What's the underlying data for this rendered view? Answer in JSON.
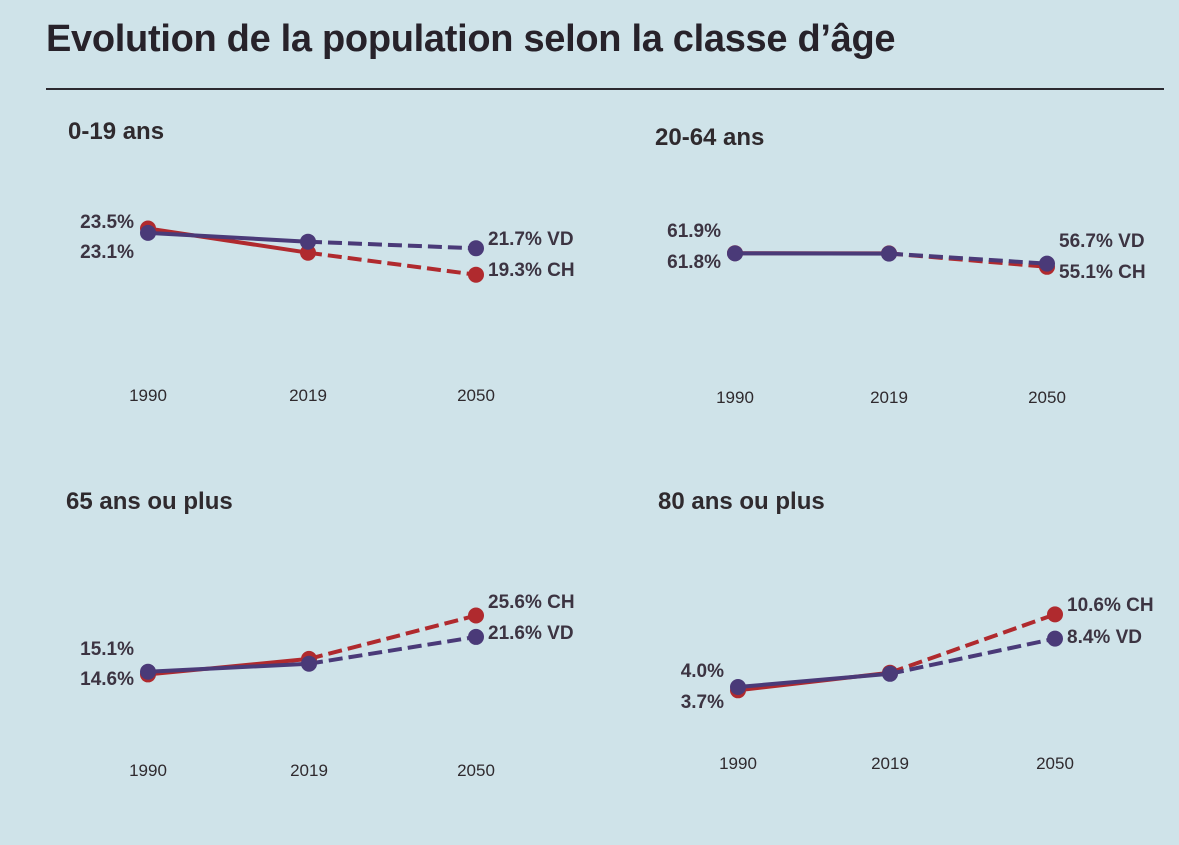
{
  "title": "Evolution de la population selon la classe d’âge",
  "colors": {
    "VD": "#4a3a78",
    "CH": "#b02a2e",
    "background": "#cfe3e9",
    "text": "#2f2a2e"
  },
  "chart_data": [
    {
      "type": "line",
      "title": "0-19 ans",
      "x": [
        "1990",
        "2019",
        "2050"
      ],
      "ylim": [
        19.0,
        24.0
      ],
      "series": [
        {
          "name": "VD",
          "values": [
            23.1,
            22.3,
            21.7
          ],
          "projected_from_index": 1
        },
        {
          "name": "CH",
          "values": [
            23.5,
            21.3,
            19.3
          ],
          "projected_from_index": 1
        }
      ],
      "start_labels": {
        "top": "23.5%",
        "bottom": "23.1%"
      },
      "end_labels": {
        "top": "21.7% VD",
        "bottom": "19.3% CH"
      }
    },
    {
      "type": "line",
      "title": "20-64 ans",
      "x": [
        "1990",
        "2019",
        "2050"
      ],
      "ylim": [
        54.5,
        62.5
      ],
      "series": [
        {
          "name": "VD",
          "values": [
            61.8,
            61.7,
            56.7
          ],
          "projected_from_index": 1
        },
        {
          "name": "CH",
          "values": [
            61.9,
            61.8,
            55.1
          ],
          "projected_from_index": 1
        }
      ],
      "start_labels": {
        "top": "61.9%",
        "bottom": "61.8%"
      },
      "end_labels": {
        "top": "56.7% VD",
        "bottom": "55.1% CH"
      }
    },
    {
      "type": "line",
      "title": "65 ans ou plus",
      "x": [
        "1990",
        "2019",
        "2050"
      ],
      "ylim": [
        13.0,
        27.0
      ],
      "series": [
        {
          "name": "VD",
          "values": [
            15.1,
            16.6,
            21.6
          ],
          "projected_from_index": 1
        },
        {
          "name": "CH",
          "values": [
            14.6,
            17.5,
            25.6
          ],
          "projected_from_index": 1
        }
      ],
      "start_labels": {
        "top": "15.1%",
        "bottom": "14.6%"
      },
      "end_labels": {
        "top": "25.6% CH",
        "bottom": "21.6% VD"
      }
    },
    {
      "type": "line",
      "title": "80 ans ou plus",
      "x": [
        "1990",
        "2019",
        "2050"
      ],
      "ylim": [
        3.0,
        11.0
      ],
      "series": [
        {
          "name": "VD",
          "values": [
            4.0,
            5.2,
            8.4
          ],
          "projected_from_index": 1
        },
        {
          "name": "CH",
          "values": [
            3.7,
            5.3,
            10.6
          ],
          "projected_from_index": 1
        }
      ],
      "start_labels": {
        "top": "4.0%",
        "bottom": "3.7%"
      },
      "end_labels": {
        "top": "10.6% CH",
        "bottom": "8.4% VD"
      }
    }
  ]
}
